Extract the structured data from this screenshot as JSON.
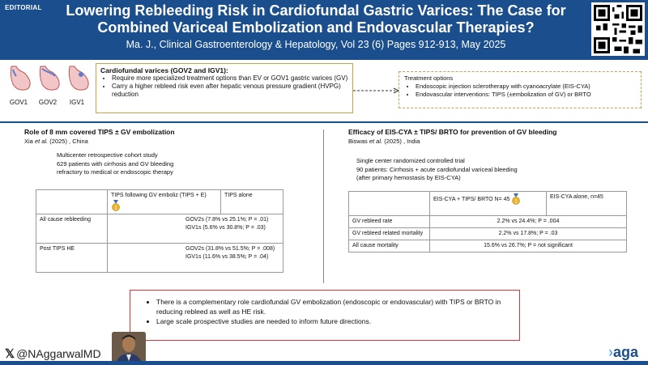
{
  "header": {
    "tag": "EDITORIAL",
    "title_line1": "Lowering Rebleeding Risk in Cardiofundal Gastric Varices: The Case for",
    "title_line2": "Combined Variceal Embolization and Endovascular Therapies?",
    "citation": "Ma. J., Clinical Gastroenterology & Hepatology, Vol 23 (6) Pages 912-913, May 2025"
  },
  "stomachs": [
    "GOV1",
    "GOV2",
    "IGV1"
  ],
  "cardiofundal": {
    "heading": "Cardiofundal varices (GOV2 and IGV1):",
    "bullets": [
      "Require more specialized treatment options than EV or GOV1 gastric varices (GV)",
      "Carry a higher rebleed risk even after hepatic venous pressure gradient (HVPG) reduction"
    ]
  },
  "treatment": {
    "heading": "Treatment options",
    "bullets": [
      "Endoscopic injection sclerotherapy with cyanoacrylate (EIS-CYA)",
      "Endovascular interventions: TIPS (±embolization of GV) or BRTO"
    ]
  },
  "left_study": {
    "title": "Role of 8 mm covered TIPS ± GV embolization",
    "author_pre": "Xia ",
    "author_etal": "et al.",
    "author_post": " (2025) , China",
    "design1": "Multicenter retrospective cohort study",
    "design2": "629 patients with cirrhosis and GV bleeding",
    "design3": "refractory to medical or endoscopic therapy",
    "col1": "TIPS following GV emboliz (TIPS + E)",
    "col2": "TIPS alone",
    "rows": [
      {
        "label": "All cause rebleeding",
        "v1": "GOV2s (7.8% vs 25.1%; P = .01)",
        "v2": "IGV1s (5.6% vs 30.8%; P = .03)"
      },
      {
        "label": "Post TIPS HE",
        "v1": "GOV2s (31.8% vs 51.5%; P = .008)",
        "v2": "IGV1s (11.6% vs 38.5%; P = .04)"
      }
    ]
  },
  "right_study": {
    "title": "Efficacy of EIS-CYA ± TIPS/ BRTO for prevention of GV bleeding",
    "author_pre": "Biswas ",
    "author_etal": "et al.",
    "author_post": " (2025) , India",
    "design1": "Single center randomized controlled trial",
    "design2": "90 patients: Cirrhosis + acute cardiofundal variceal bleeding",
    "design3": "(after primary hemostasis by EIS-CYA)",
    "col1": "EIS-CYA + TIPS/ BRTO N= 45",
    "col2": "EIS-CYA alone, n=45",
    "rows": [
      {
        "label": "GV rebleed rate",
        "value": "2.2% vs 24.4%; P = .004"
      },
      {
        "label": "GV rebleed related mortality",
        "value": "2.2% vs 17.8%; P = .03"
      },
      {
        "label": "All cause mortality",
        "value": "15.6% vs 26.7%; P = not significant"
      }
    ]
  },
  "medal_number": "1",
  "key_points": [
    "There is a complementary role cardiofundal GV embolization (endoscopic or endovascular) with TIPS or BRTO in reducing rebleed as well as HE risk.",
    "Large scale prospective studies are needed to inform future directions."
  ],
  "footer": {
    "x_glyph": "𝕏",
    "handle": "@NAggarwalMD",
    "logo_chevron": "›",
    "logo_text": "aga"
  },
  "colors": {
    "header_bg": "#1a4e8c",
    "accent_gold": "#c8a24a",
    "key_border": "#dd3333"
  }
}
